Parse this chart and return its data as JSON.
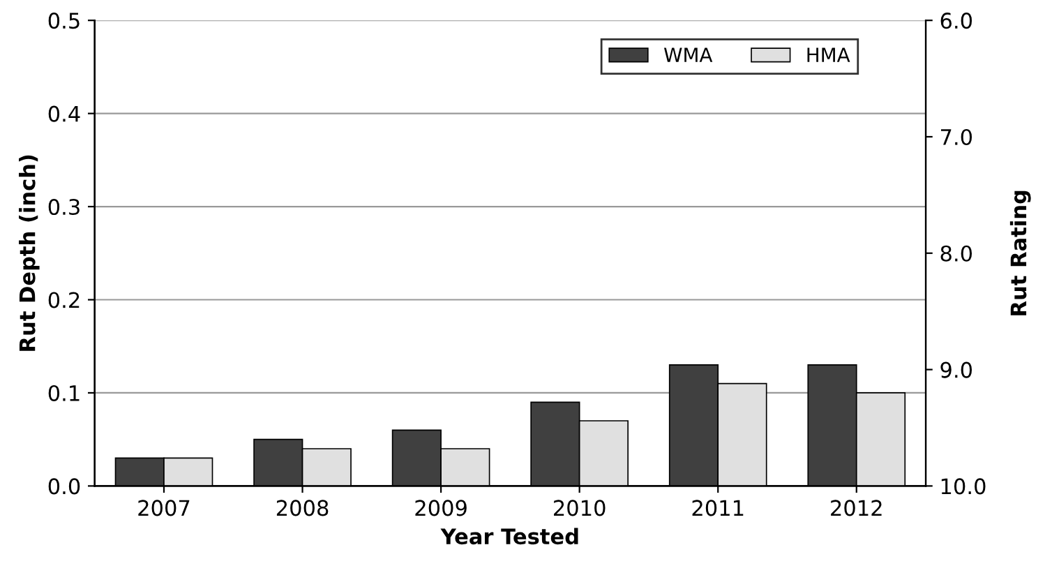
{
  "chart_data": {
    "type": "bar",
    "xlabel": "Year Tested",
    "ylabel": "Rut Depth (inch)",
    "y2label": "Rut Rating",
    "categories": [
      "2007",
      "2008",
      "2009",
      "2010",
      "2011",
      "2012"
    ],
    "series": [
      {
        "name": "WMA",
        "color": "#404040",
        "values": [
          0.03,
          0.05,
          0.06,
          0.09,
          0.13,
          0.13
        ]
      },
      {
        "name": "HMA",
        "color": "#e0e0e0",
        "values": [
          0.03,
          0.04,
          0.04,
          0.07,
          0.11,
          0.1
        ]
      }
    ],
    "ylim": [
      0,
      0.5
    ],
    "yticks": [
      {
        "value": 0,
        "label": "0.0"
      },
      {
        "value": 0.1,
        "label": "0.1"
      },
      {
        "value": 0.2,
        "label": "0.2"
      },
      {
        "value": 0.3,
        "label": "0.3"
      },
      {
        "value": 0.4,
        "label": "0.4"
      },
      {
        "value": 0.5,
        "label": "0.5"
      }
    ],
    "y2lim": [
      10,
      6
    ],
    "y2ticks": [
      {
        "value": 6,
        "label": "6.0"
      },
      {
        "value": 7,
        "label": "7.0"
      },
      {
        "value": 8,
        "label": "8.0"
      },
      {
        "value": 9,
        "label": "9.0"
      },
      {
        "value": 10,
        "label": "10.0"
      }
    ],
    "grid": "y",
    "legend": "top right"
  }
}
